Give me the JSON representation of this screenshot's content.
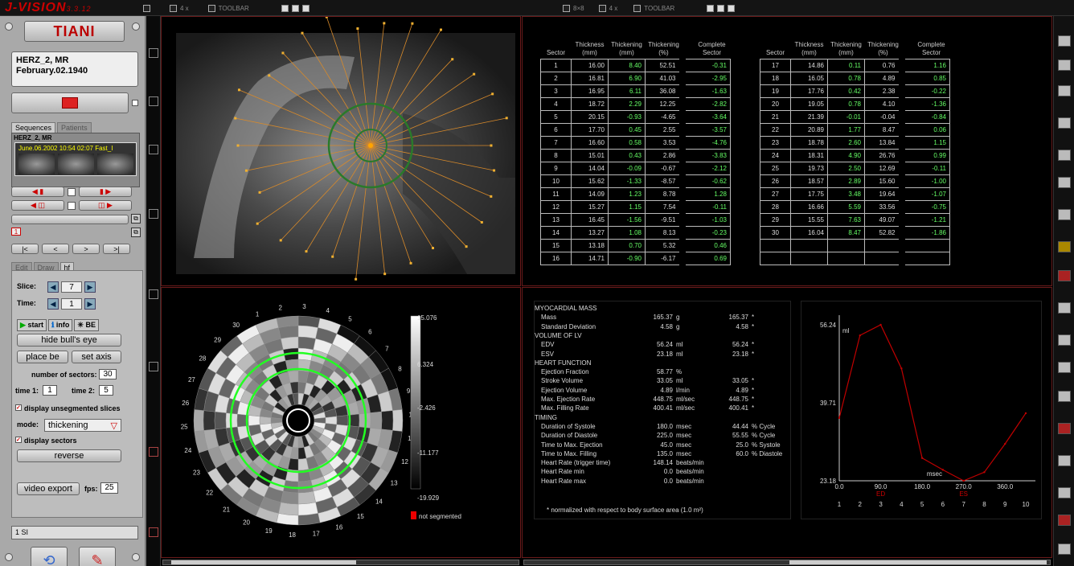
{
  "app": {
    "name": "J-VISION",
    "version": "3.3.12",
    "logo": "TIANI"
  },
  "toolbar": {
    "left_layout": "4 x",
    "left_label": "TOOLBAR",
    "mid_layout": "8×8",
    "mid_layout2": "4 x",
    "right_label": "TOOLBAR"
  },
  "patient": {
    "name": "HERZ_2, MR",
    "dob": "February.02.1940"
  },
  "tabs": {
    "sequences": "Sequences",
    "patients": "Patients"
  },
  "series": {
    "label": "HERZ_2, MR",
    "title": "June.06.2002 10:54 02:07 Fast_I"
  },
  "ctrl": {
    "page": "1"
  },
  "subtabs": [
    "Edit",
    "Draw",
    "hf"
  ],
  "slice": {
    "label": "Slice:",
    "value": "7"
  },
  "time": {
    "label": "Time:",
    "value": "1"
  },
  "mode_tabs": {
    "start": "start",
    "info": "info",
    "be": "BE"
  },
  "buttons": {
    "hide_be": "hide bull's eye",
    "place_be": "place be",
    "set_axis": "set axis",
    "reverse": "reverse",
    "video_export": "video export"
  },
  "sectors": {
    "label": "number of sectors:",
    "value": "30"
  },
  "time1": {
    "label": "time 1:",
    "value": "1"
  },
  "time2": {
    "label": "time 2:",
    "value": "5"
  },
  "chk_unseg": "display unsegmented slices",
  "mode": {
    "label": "mode:",
    "value": "thickening"
  },
  "chk_sectors": "display sectors",
  "fps": {
    "label": "fps:",
    "value": "25"
  },
  "status": "1 SI",
  "table": {
    "headers": [
      "Sector",
      "Thickness (mm)",
      "Thickening (mm)",
      "Thickening (%)",
      "Complete Sector"
    ],
    "left": [
      [
        "1",
        "16.00",
        "8.40",
        "52.51",
        "-0.31"
      ],
      [
        "2",
        "16.81",
        "6.90",
        "41.03",
        "-2.95"
      ],
      [
        "3",
        "16.95",
        "6.11",
        "36.08",
        "-1.63"
      ],
      [
        "4",
        "18.72",
        "2.29",
        "12.25",
        "-2.82"
      ],
      [
        "5",
        "20.15",
        "-0.93",
        "-4.65",
        "-3.64"
      ],
      [
        "6",
        "17.70",
        "0.45",
        "2.55",
        "-3.57"
      ],
      [
        "7",
        "16.60",
        "0.58",
        "3.53",
        "-4.76"
      ],
      [
        "8",
        "15.01",
        "0.43",
        "2.86",
        "-3.83"
      ],
      [
        "9",
        "14.04",
        "-0.09",
        "-0.67",
        "-2.12"
      ],
      [
        "10",
        "15.62",
        "-1.33",
        "-8.57",
        "-0.62"
      ],
      [
        "11",
        "14.09",
        "1.23",
        "8.78",
        "1.28"
      ],
      [
        "12",
        "15.27",
        "1.15",
        "7.54",
        "-0.11"
      ],
      [
        "13",
        "16.45",
        "-1.56",
        "-9.51",
        "-1.03"
      ],
      [
        "14",
        "13.27",
        "1.08",
        "8.13",
        "-0.23"
      ],
      [
        "15",
        "13.18",
        "0.70",
        "5.32",
        "0.46"
      ],
      [
        "16",
        "14.71",
        "-0.90",
        "-6.17",
        "0.69"
      ]
    ],
    "right": [
      [
        "17",
        "14.86",
        "0.11",
        "0.76",
        "1.16"
      ],
      [
        "18",
        "16.05",
        "0.78",
        "4.89",
        "0.85"
      ],
      [
        "19",
        "17.76",
        "0.42",
        "2.38",
        "-0.22"
      ],
      [
        "20",
        "19.05",
        "0.78",
        "4.10",
        "-1.36"
      ],
      [
        "21",
        "21.39",
        "-0.01",
        "-0.04",
        "-0.84"
      ],
      [
        "22",
        "20.89",
        "1.77",
        "8.47",
        "0.06"
      ],
      [
        "23",
        "18.78",
        "2.60",
        "13.84",
        "1.15"
      ],
      [
        "24",
        "18.31",
        "4.90",
        "26.76",
        "0.99"
      ],
      [
        "25",
        "19.73",
        "2.50",
        "12.69",
        "-0.11"
      ],
      [
        "26",
        "18.57",
        "2.89",
        "15.60",
        "-1.00"
      ],
      [
        "27",
        "17.75",
        "3.48",
        "19.64",
        "-1.07"
      ],
      [
        "28",
        "16.66",
        "5.59",
        "33.56",
        "-0.75"
      ],
      [
        "29",
        "15.55",
        "7.63",
        "49.07",
        "-1.21"
      ],
      [
        "30",
        "16.04",
        "8.47",
        "52.82",
        "-1.86"
      ],
      [
        "",
        "",
        " ",
        "",
        ""
      ],
      [
        "",
        "",
        "",
        "",
        ""
      ]
    ]
  },
  "colorbar": {
    "max": "15.076",
    "v2": "6.324",
    "v3": "-2.426",
    "v4": "-11.177",
    "min": "-19.929",
    "legend": "not segmented"
  },
  "bulls_labels": [
    "1",
    "2",
    "3",
    "4",
    "5",
    "6",
    "7",
    "8",
    "9",
    "10",
    "11",
    "12",
    "13",
    "14",
    "15",
    "16",
    "17",
    "18",
    "19",
    "20",
    "21",
    "22",
    "23",
    "24",
    "25",
    "26",
    "27",
    "28",
    "29",
    "30"
  ],
  "stats": [
    {
      "t": "MYOCARDIAL MASS",
      "h": true
    },
    {
      "t": "Mass",
      "v": "165.37",
      "u": "g",
      "n": "165.37",
      "s": "*"
    },
    {
      "t": "Standard Deviation",
      "v": "4.58",
      "u": "g",
      "n": "4.58",
      "s": "*"
    },
    {
      "t": "VOLUME OF LV",
      "h": true
    },
    {
      "t": "EDV",
      "v": "56.24",
      "u": "ml",
      "n": "56.24",
      "s": "*"
    },
    {
      "t": "ESV",
      "v": "23.18",
      "u": "ml",
      "n": "23.18",
      "s": "*"
    },
    {
      "t": "HEART FUNCTION",
      "h": true
    },
    {
      "t": "Ejection Fraction",
      "v": "58.77",
      "u": "%",
      "n": "",
      "s": ""
    },
    {
      "t": "Stroke Volume",
      "v": "33.05",
      "u": "ml",
      "n": "33.05",
      "s": "*"
    },
    {
      "t": "Ejection Volume",
      "v": "4.89",
      "u": "l/min",
      "n": "4.89",
      "s": "*"
    },
    {
      "t": "Max. Ejection Rate",
      "v": "448.75",
      "u": "ml/sec",
      "n": "448.75",
      "s": "*"
    },
    {
      "t": "Max. Filling Rate",
      "v": "400.41",
      "u": "ml/sec",
      "n": "400.41",
      "s": "*"
    },
    {
      "t": "TIMING",
      "h": true
    },
    {
      "t": "Duration of Systole",
      "v": "180.0",
      "u": "msec",
      "n": "44.44",
      "s": "% Cycle"
    },
    {
      "t": "Duration of Diastole",
      "v": "225.0",
      "u": "msec",
      "n": "55.55",
      "s": "% Cycle"
    },
    {
      "t": "Time to Max. Ejection",
      "v": "45.0",
      "u": "msec",
      "n": "25.0",
      "s": "% Systole"
    },
    {
      "t": "Time to Max. Filling",
      "v": "135.0",
      "u": "msec",
      "n": "60.0",
      "s": "% Diastole"
    },
    {
      "t": "Heart Rate (trigger time)",
      "v": "148.14",
      "u": "beats/min",
      "n": "",
      "s": ""
    },
    {
      "t": "Heart Rate min",
      "v": "0.0",
      "u": "beats/min",
      "n": "",
      "s": ""
    },
    {
      "t": "Heart Rate max",
      "v": "0.0",
      "u": "beats/min",
      "n": "",
      "s": ""
    }
  ],
  "stats_note": "* normalized with respect to body surface area (1.0 m²)",
  "chart_data": {
    "type": "line",
    "ylabel": "ml",
    "xlabel": "msec",
    "y_ticks": [
      "56.24",
      "39.71",
      "23.18"
    ],
    "x_ticks": [
      "0.0",
      "90.0",
      "180.0",
      "270.0",
      "360.0"
    ],
    "phase_labels": [
      "1",
      "2",
      "3",
      "4",
      "5",
      "6",
      "7",
      "8",
      "9",
      "10"
    ],
    "ed_label": "ED",
    "es_label": "ES",
    "x": [
      0,
      45,
      90,
      135,
      180,
      225,
      270,
      315,
      360,
      405
    ],
    "values": [
      36.5,
      54.0,
      56.24,
      47.0,
      28.0,
      25.5,
      23.18,
      25.0,
      31.0,
      37.5
    ],
    "ylim": [
      23.18,
      56.24
    ],
    "xlim": [
      0,
      405
    ],
    "line_color": "#c00000"
  }
}
